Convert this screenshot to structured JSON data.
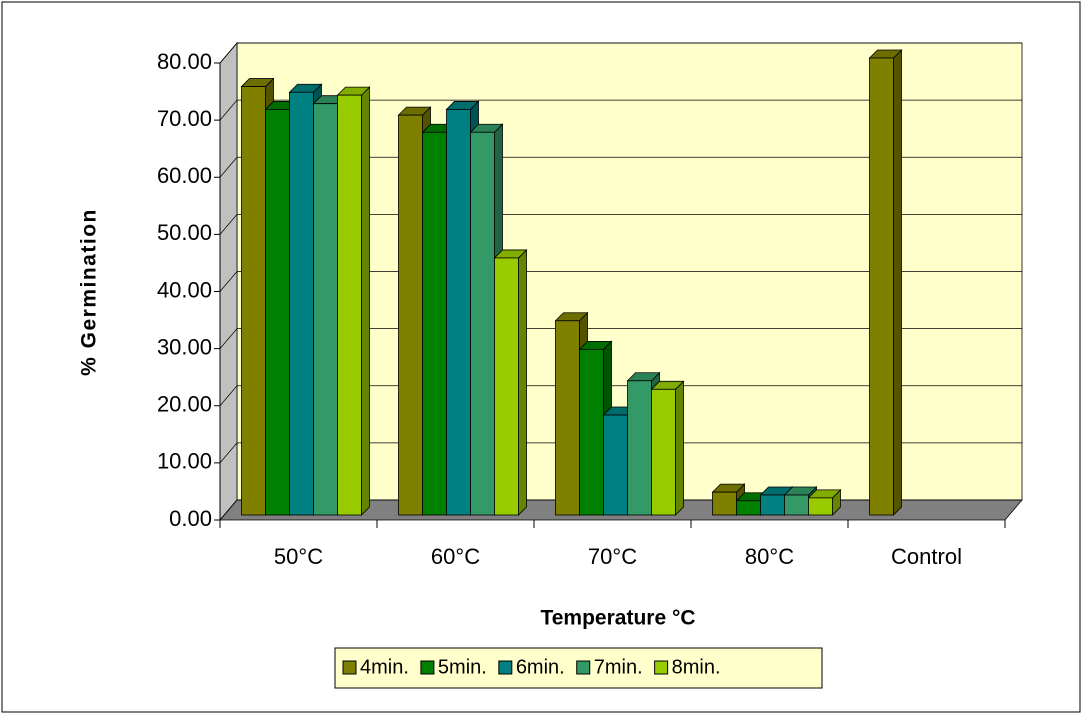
{
  "chart_data": {
    "type": "bar3d",
    "x_label": "Temperature °C",
    "y_label": "% Germination",
    "categories": [
      "50°C",
      "60°C",
      "70°C",
      "80°C",
      "Control"
    ],
    "series": [
      {
        "name": "4min.",
        "color": "#808000",
        "values": [
          75,
          70,
          34,
          4,
          80
        ]
      },
      {
        "name": "5min.",
        "color": "#008000",
        "values": [
          71,
          67,
          29,
          2.5,
          null
        ]
      },
      {
        "name": "6min.",
        "color": "#008080",
        "values": [
          74,
          71,
          17.5,
          3.5,
          null
        ]
      },
      {
        "name": "7min.",
        "color": "#339966",
        "values": [
          72,
          67,
          23.5,
          3.5,
          null
        ]
      },
      {
        "name": "8min.",
        "color": "#99cc00",
        "values": [
          73.5,
          45,
          22,
          3,
          null
        ]
      }
    ],
    "ylim": [
      0,
      80
    ],
    "yticks": [
      {
        "value": 0,
        "label": "0.00"
      },
      {
        "value": 10,
        "label": "10.00"
      },
      {
        "value": 20,
        "label": "20.00"
      },
      {
        "value": 30,
        "label": "30.00"
      },
      {
        "value": 40,
        "label": "40.00"
      },
      {
        "value": 50,
        "label": "50.00"
      },
      {
        "value": 60,
        "label": "60.00"
      },
      {
        "value": 70,
        "label": "70.00"
      },
      {
        "value": 80,
        "label": "80.00"
      }
    ],
    "grid": true,
    "legend": "bottom"
  }
}
